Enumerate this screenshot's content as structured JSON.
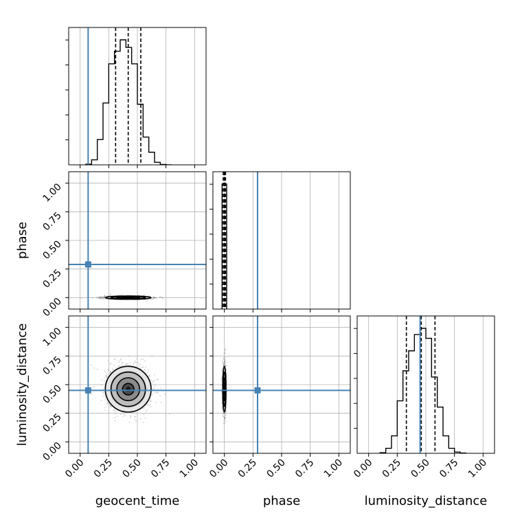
{
  "chart_data": {
    "type": "corner",
    "parameters": [
      "geocent_time",
      "phase",
      "luminosity_distance"
    ],
    "axis_range": [
      -0.1,
      1.1
    ],
    "tick_values": [
      0.0,
      0.25,
      0.5,
      0.75,
      1.0
    ],
    "tick_labels": [
      "0.00",
      "0.25",
      "0.50",
      "0.75",
      "1.00"
    ],
    "grid": true,
    "truths": {
      "geocent_time": 0.07,
      "phase": 0.29,
      "luminosity_distance": 0.45
    },
    "truth_color": "#4682b4",
    "quantiles": {
      "geocent_time": [
        0.31,
        0.42,
        0.53
      ],
      "phase": [
        -0.01,
        0.0,
        0.01
      ],
      "luminosity_distance": [
        0.33,
        0.46,
        0.58
      ]
    },
    "hist_1d": {
      "geocent_time": {
        "bin_edges": [
          0.05,
          0.1,
          0.15,
          0.2,
          0.25,
          0.3,
          0.35,
          0.4,
          0.45,
          0.5,
          0.55,
          0.6,
          0.65,
          0.7,
          0.75,
          0.8
        ],
        "counts": [
          0.5,
          4,
          20,
          49,
          80,
          90,
          99,
          93,
          80,
          48,
          22,
          10,
          2,
          0.3,
          0
        ]
      },
      "phase": {
        "bin_edges": [
          -0.02,
          -0.01,
          0.0,
          0.01,
          0.02
        ],
        "counts": [
          100,
          100,
          100,
          100
        ]
      },
      "luminosity_distance": {
        "bin_edges": [
          0.1,
          0.15,
          0.2,
          0.25,
          0.3,
          0.35,
          0.4,
          0.45,
          0.5,
          0.55,
          0.6,
          0.65,
          0.7,
          0.75,
          0.8,
          0.85
        ],
        "counts": [
          0.5,
          4,
          14,
          42,
          66,
          82,
          95,
          100,
          92,
          61,
          37,
          14,
          4,
          1,
          0.2
        ]
      }
    },
    "hist_2d": [
      {
        "x": "geocent_time",
        "y": "phase",
        "center": [
          0.42,
          0.0
        ],
        "spread": [
          0.1,
          0.005
        ]
      },
      {
        "x": "geocent_time",
        "y": "luminosity_distance",
        "center": [
          0.42,
          0.46
        ],
        "spread": [
          0.1,
          0.1
        ]
      },
      {
        "x": "phase",
        "y": "luminosity_distance",
        "center": [
          0.0,
          0.46
        ],
        "spread": [
          0.005,
          0.1
        ]
      }
    ],
    "colors": {
      "hist_line": "#000000",
      "grid": "#b0b0b0",
      "axis": "#000000"
    }
  }
}
